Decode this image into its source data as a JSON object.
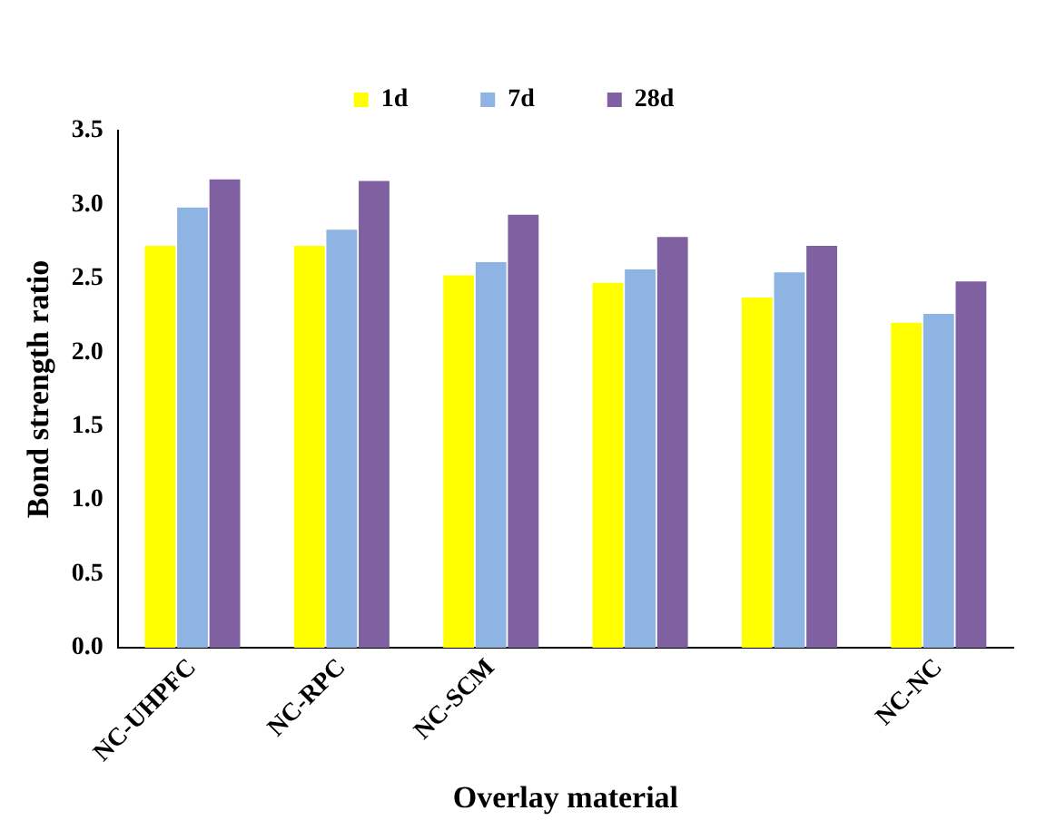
{
  "chart_data": {
    "type": "bar",
    "xlabel": "Overlay material",
    "ylabel": "Bond strength ratio",
    "categories": [
      "NC-UHPFC",
      "NC-RPC",
      "NC-SCM",
      null,
      null,
      "NC-NC"
    ],
    "series": [
      {
        "name": "1d",
        "color": "#ffff00",
        "values": [
          2.72,
          2.72,
          2.52,
          2.47,
          2.37,
          2.2
        ]
      },
      {
        "name": "7d",
        "color": "#8eb4e3",
        "values": [
          2.98,
          2.83,
          2.61,
          2.56,
          2.54,
          2.26
        ]
      },
      {
        "name": "28d",
        "color": "#7f60a0",
        "values": [
          3.17,
          3.16,
          2.93,
          2.78,
          2.72,
          2.48
        ]
      }
    ],
    "ylim": [
      0,
      3.5
    ],
    "yticks": [
      {
        "value": 0,
        "label": "0.0"
      },
      0.5,
      {
        "value": 1,
        "label": "1.0"
      },
      1.5,
      {
        "value": 2,
        "label": "2.0"
      },
      2.5,
      {
        "value": 3,
        "label": "3.0"
      },
      3.5
    ],
    "grid": false,
    "legend": "top"
  }
}
